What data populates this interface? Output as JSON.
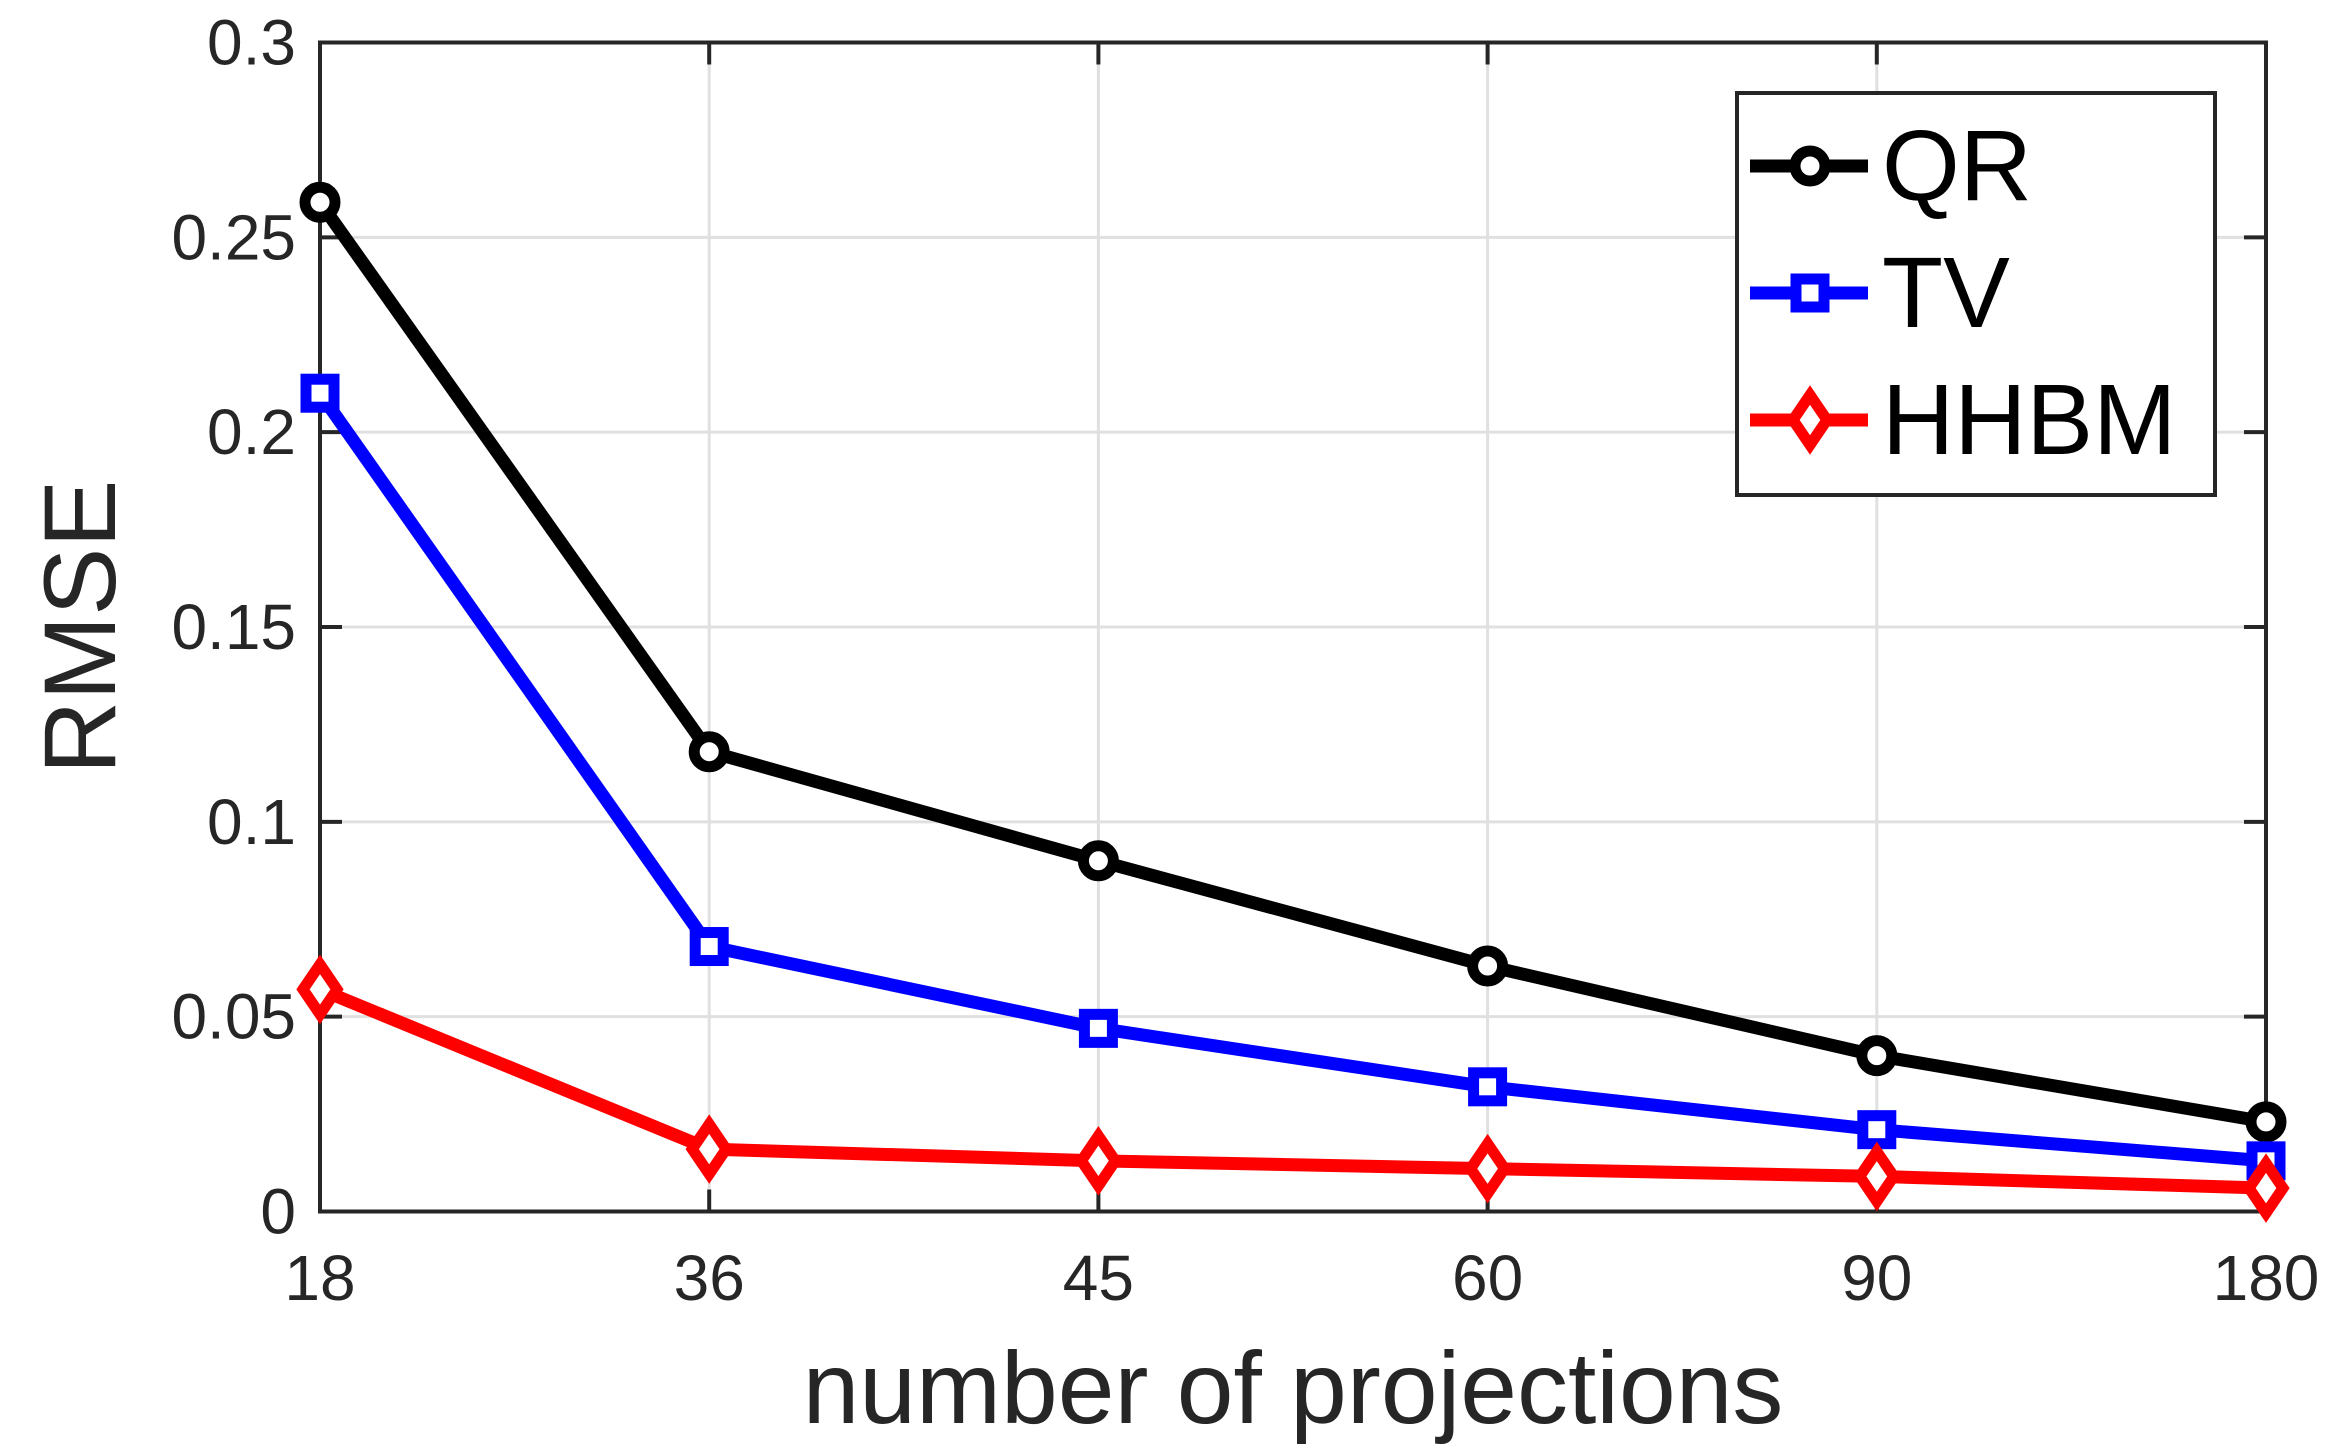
{
  "chart_data": {
    "type": "line",
    "title": "",
    "xlabel": "number of projections",
    "ylabel": "RMSE",
    "categories": [
      18,
      36,
      45,
      60,
      90,
      180
    ],
    "x_tick_labels": [
      "18",
      "36",
      "45",
      "60",
      "90",
      "180"
    ],
    "y_ticks": [
      0,
      0.05,
      0.1,
      0.15,
      0.2,
      0.25,
      0.3
    ],
    "y_tick_labels": [
      "0",
      "0.05",
      "0.1",
      "0.15",
      "0.2",
      "0.25",
      "0.3"
    ],
    "ylim": [
      0,
      0.3
    ],
    "x_spacing": "categorical-even",
    "grid": true,
    "legend_position": "top-right-inside",
    "legend_entries": [
      "QR",
      "TV",
      "HHBM"
    ],
    "series": [
      {
        "name": "QR",
        "color": "#000000",
        "marker": "circle",
        "values": [
          0.259,
          0.118,
          0.09,
          0.063,
          0.04,
          0.023
        ]
      },
      {
        "name": "TV",
        "color": "#0000ff",
        "marker": "square",
        "values": [
          0.21,
          0.068,
          0.047,
          0.032,
          0.021,
          0.013
        ]
      },
      {
        "name": "HHBM",
        "color": "#ff0000",
        "marker": "diamond",
        "values": [
          0.057,
          0.016,
          0.013,
          0.011,
          0.009,
          0.006
        ]
      }
    ],
    "colors": {
      "axis": "#262626",
      "tick_text": "#262626",
      "label_text": "#262626",
      "legend_text": "#000000",
      "grid": "#e0e0e0",
      "background": "#ffffff",
      "marker_face": "#ffffff"
    }
  }
}
